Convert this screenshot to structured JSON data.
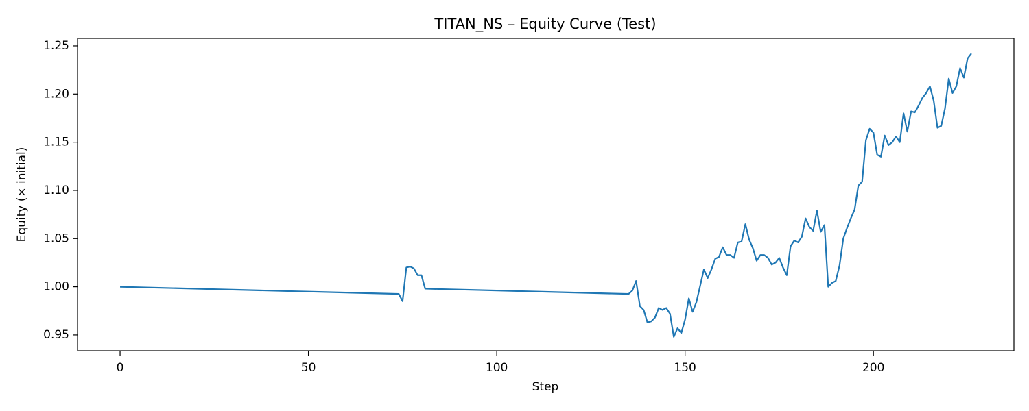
{
  "chart_data": {
    "type": "line",
    "title": "TITAN_NS – Equity Curve (Test)",
    "x_label": "Step",
    "y_label": "Equity (× initial)",
    "x": [
      0,
      74,
      75,
      76,
      77,
      78,
      79,
      80,
      81,
      135,
      136,
      137,
      138,
      139,
      140,
      141,
      142,
      143,
      144,
      145,
      146,
      147,
      148,
      149,
      150,
      151,
      152,
      153,
      154,
      155,
      156,
      157,
      158,
      159,
      160,
      161,
      162,
      163,
      164,
      165,
      166,
      167,
      168,
      169,
      170,
      171,
      172,
      173,
      174,
      175,
      176,
      177,
      178,
      179,
      180,
      181,
      182,
      183,
      184,
      185,
      186,
      187,
      188,
      189,
      190,
      191,
      192,
      193,
      194,
      195,
      196,
      197,
      198,
      199,
      200,
      201,
      202,
      203,
      204,
      205,
      206,
      207,
      208,
      209,
      210,
      211,
      212,
      213,
      214,
      215,
      216,
      217,
      218,
      219,
      220,
      221,
      222,
      223,
      224,
      225,
      226
    ],
    "series": [
      {
        "name": "Equity",
        "color": "#1f77b4",
        "values": [
          1.0,
          0.9925,
          0.985,
          1.02,
          1.021,
          1.019,
          1.012,
          1.012,
          0.998,
          0.9925,
          0.996,
          1.006,
          0.98,
          0.976,
          0.963,
          0.964,
          0.968,
          0.978,
          0.976,
          0.978,
          0.972,
          0.948,
          0.957,
          0.952,
          0.966,
          0.988,
          0.974,
          0.984,
          1.001,
          1.018,
          1.009,
          1.018,
          1.029,
          1.031,
          1.041,
          1.033,
          1.033,
          1.03,
          1.046,
          1.047,
          1.065,
          1.049,
          1.04,
          1.027,
          1.033,
          1.033,
          1.03,
          1.023,
          1.025,
          1.03,
          1.02,
          1.012,
          1.042,
          1.048,
          1.046,
          1.052,
          1.071,
          1.062,
          1.058,
          1.079,
          1.057,
          1.064,
          1.0,
          1.004,
          1.006,
          1.022,
          1.05,
          1.061,
          1.071,
          1.08,
          1.105,
          1.109,
          1.152,
          1.164,
          1.16,
          1.137,
          1.135,
          1.157,
          1.147,
          1.15,
          1.156,
          1.15,
          1.18,
          1.161,
          1.182,
          1.181,
          1.188,
          1.196,
          1.201,
          1.208,
          1.193,
          1.165,
          1.167,
          1.185,
          1.216,
          1.201,
          1.208,
          1.227,
          1.217,
          1.237,
          1.242
        ]
      }
    ],
    "xlim": [
      -11.3,
      237.3
    ],
    "ylim": [
      0.9336,
      1.2578
    ],
    "xticks": [
      0,
      50,
      100,
      150,
      200
    ],
    "yticks": [
      0.95,
      {
        "value": 1.0,
        "label": "1.00"
      },
      1.05,
      {
        "value": 1.1,
        "label": "1.10"
      },
      1.15,
      {
        "value": 1.2,
        "label": "1.20"
      },
      1.25
    ],
    "grid": false
  }
}
